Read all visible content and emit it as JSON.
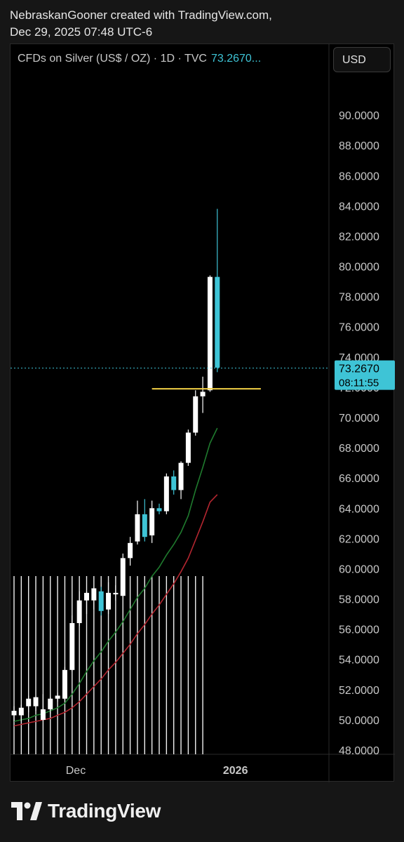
{
  "header": {
    "line1": "NebraskanGooner created with TradingView.com,",
    "line2": "Dec 29, 2025 07:48 UTC-6"
  },
  "legend": {
    "symbol": "CFDs on Silver (US$ / OZ) · 1D · TVC",
    "last_price": "73.2670..."
  },
  "currency_button": "USD",
  "price_tag": {
    "price": "73.2670",
    "countdown": "08:11:55"
  },
  "footer": {
    "brand": "TradingView"
  },
  "colors": {
    "up": "#ffffff",
    "down": "#3ec4d6",
    "ma_fast": "#1f7a2e",
    "ma_slow": "#b32630",
    "level": "#f2d046",
    "tag": "#3ec4d6",
    "bg": "#000000"
  },
  "chart_data": {
    "type": "candlestick",
    "ylim": [
      48,
      92
    ],
    "y_ticks": [
      "48.0000",
      "50.0000",
      "52.0000",
      "54.0000",
      "56.0000",
      "58.0000",
      "60.0000",
      "62.0000",
      "64.0000",
      "66.0000",
      "68.0000",
      "70.0000",
      "72.0000",
      "74.0000",
      "76.0000",
      "78.0000",
      "80.0000",
      "82.0000",
      "84.0000",
      "86.0000",
      "88.0000",
      "90.0000"
    ],
    "x_labels": [
      {
        "label": "Dec",
        "index": 8.5
      },
      {
        "label": "2026",
        "index": 30.5
      }
    ],
    "candles": [
      {
        "o": 50.3,
        "h": 50.9,
        "l": 49.9,
        "c": 50.6
      },
      {
        "o": 50.3,
        "h": 51.0,
        "l": 49.9,
        "c": 50.8
      },
      {
        "o": 50.9,
        "h": 51.6,
        "l": 50.5,
        "c": 51.4
      },
      {
        "o": 50.9,
        "h": 51.5,
        "l": 50.6,
        "c": 51.5
      },
      {
        "o": 50.0,
        "h": 51.7,
        "l": 49.9,
        "c": 50.7
      },
      {
        "o": 50.7,
        "h": 51.5,
        "l": 50.4,
        "c": 51.4
      },
      {
        "o": 51.4,
        "h": 51.8,
        "l": 51.2,
        "c": 51.6
      },
      {
        "o": 51.4,
        "h": 53.5,
        "l": 51.3,
        "c": 53.3
      },
      {
        "o": 53.3,
        "h": 56.9,
        "l": 53.2,
        "c": 56.4
      },
      {
        "o": 56.4,
        "h": 58.5,
        "l": 56.2,
        "c": 57.9
      },
      {
        "o": 57.9,
        "h": 58.5,
        "l": 57.0,
        "c": 58.4
      },
      {
        "o": 57.9,
        "h": 58.7,
        "l": 57.3,
        "c": 58.7
      },
      {
        "o": 58.5,
        "h": 58.8,
        "l": 56.9,
        "c": 57.2
      },
      {
        "o": 57.3,
        "h": 59.1,
        "l": 57.0,
        "c": 58.4
      },
      {
        "o": 58.3,
        "h": 58.9,
        "l": 57.9,
        "c": 58.4
      },
      {
        "o": 58.2,
        "h": 61.0,
        "l": 58.2,
        "c": 60.7
      },
      {
        "o": 60.7,
        "h": 62.1,
        "l": 60.2,
        "c": 61.7
      },
      {
        "o": 61.8,
        "h": 64.5,
        "l": 61.6,
        "c": 63.6
      },
      {
        "o": 63.6,
        "h": 64.6,
        "l": 61.8,
        "c": 62.1
      },
      {
        "o": 62.2,
        "h": 64.5,
        "l": 61.7,
        "c": 64.0
      },
      {
        "o": 64.0,
        "h": 64.3,
        "l": 63.6,
        "c": 63.8
      },
      {
        "o": 63.8,
        "h": 66.3,
        "l": 63.6,
        "c": 66.1
      },
      {
        "o": 66.1,
        "h": 66.5,
        "l": 64.9,
        "c": 65.2
      },
      {
        "o": 65.2,
        "h": 67.1,
        "l": 64.6,
        "c": 67.0
      },
      {
        "o": 67.0,
        "h": 69.2,
        "l": 66.8,
        "c": 69.0
      },
      {
        "o": 69.0,
        "h": 71.8,
        "l": 68.8,
        "c": 71.4
      },
      {
        "o": 71.4,
        "h": 72.7,
        "l": 70.3,
        "c": 71.7
      },
      {
        "o": 71.8,
        "h": 79.4,
        "l": 71.7,
        "c": 79.3
      },
      {
        "o": 79.3,
        "h": 83.8,
        "l": 73.0,
        "c": 73.3
      }
    ],
    "ma_fast": [
      49.9,
      50.0,
      50.1,
      50.3,
      50.4,
      50.6,
      50.8,
      51.1,
      51.7,
      52.4,
      53.2,
      53.9,
      54.5,
      55.2,
      55.8,
      56.5,
      57.3,
      58.1,
      58.7,
      59.5,
      60.1,
      60.9,
      61.6,
      62.4,
      63.5,
      65.2,
      66.7,
      68.3,
      69.3
    ],
    "ma_slow": [
      49.6,
      49.7,
      49.8,
      49.9,
      50.0,
      50.1,
      50.3,
      50.5,
      50.8,
      51.2,
      51.7,
      52.2,
      52.7,
      53.3,
      53.8,
      54.4,
      55.0,
      55.7,
      56.3,
      57.0,
      57.6,
      58.3,
      59.0,
      59.8,
      60.7,
      61.9,
      63.1,
      64.4,
      64.9
    ],
    "level_line": {
      "price": 71.9,
      "from_index": 19,
      "to_index": 34
    },
    "last_price": 73.267,
    "volume_hint_note": ""
  }
}
